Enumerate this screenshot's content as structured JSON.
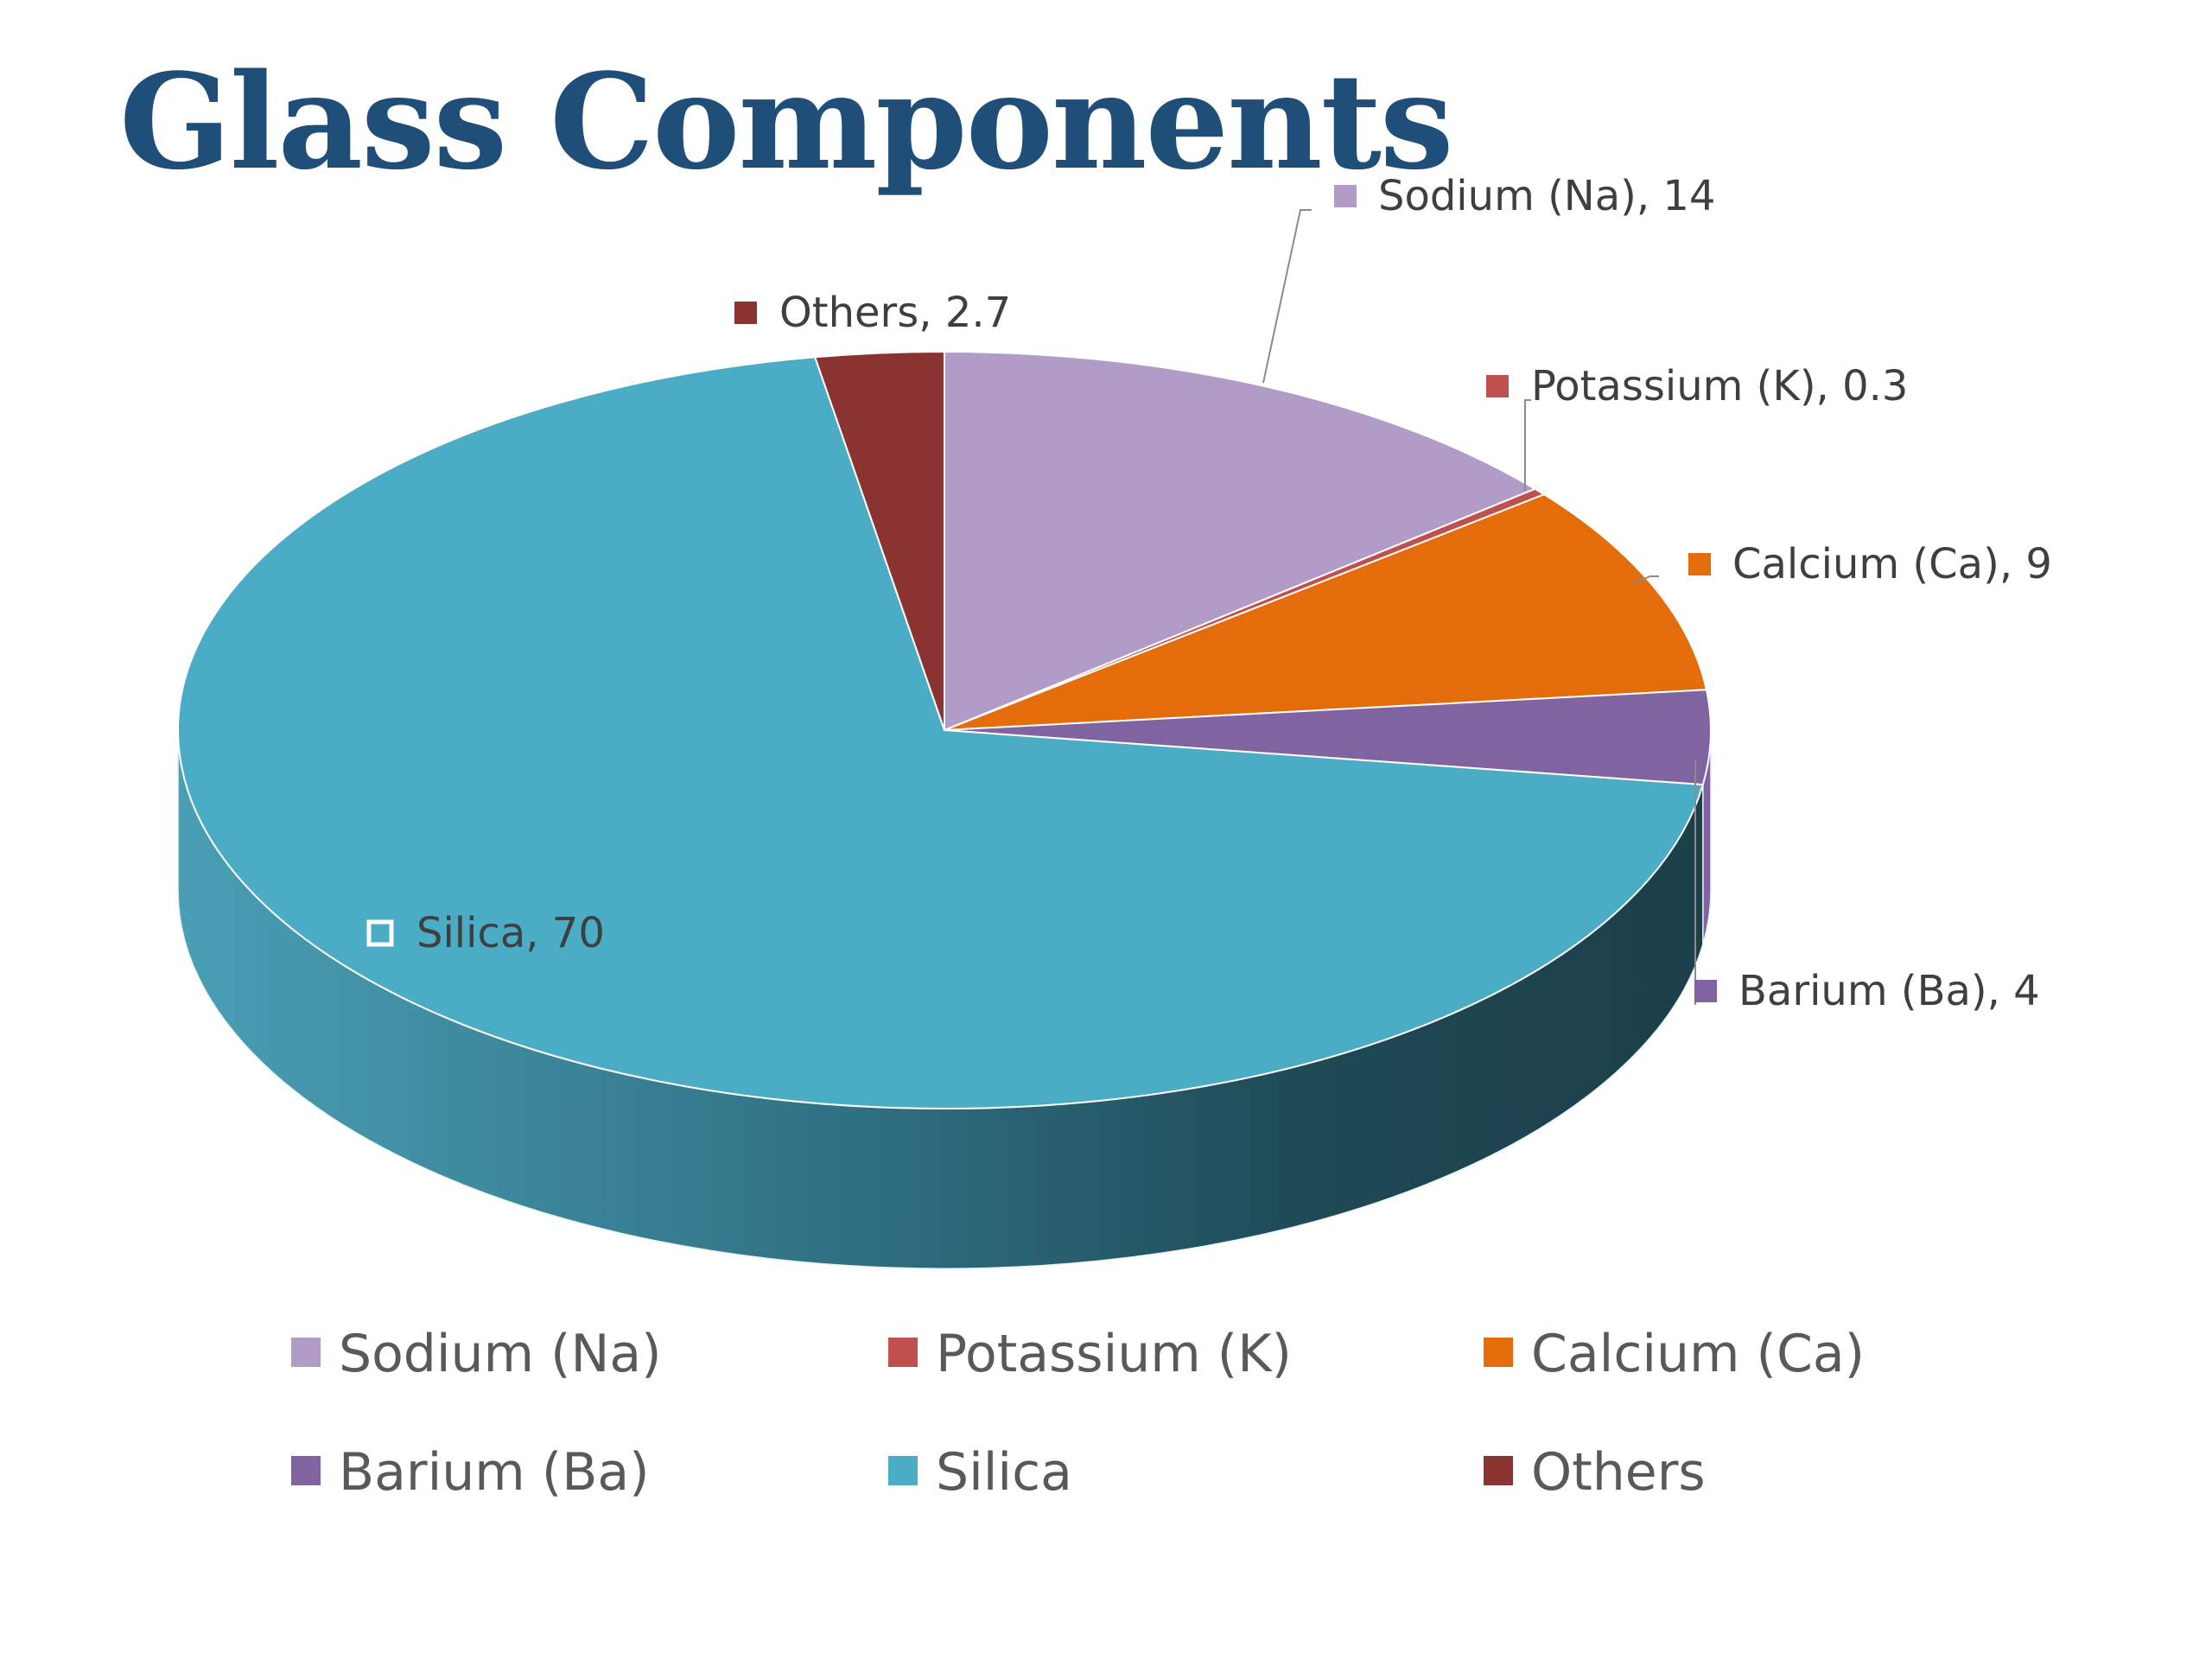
{
  "title": "Glass Components",
  "chart_data": {
    "type": "pie",
    "style": "3d",
    "title": "Glass Components",
    "categories": [
      "Sodium  (Na)",
      "Potassium (K)",
      "Calcium (Ca)",
      "Barium (Ba)",
      "Silica",
      "Others"
    ],
    "values": [
      14,
      0.3,
      9,
      4,
      70,
      2.7
    ],
    "data_labels": [
      "Sodium  (Na), 14",
      "Potassium (K), 0.3",
      "Calcium (Ca), 9",
      "Barium (Ba), 4",
      "Silica, 70",
      "Others, 2.7"
    ],
    "colors": [
      "#b09cc6",
      "#c0504d",
      "#e46c0a",
      "#8064a2",
      "#4bacc6",
      "#8b3331"
    ],
    "legend": {
      "position": "bottom",
      "items": [
        {
          "label": "Sodium  (Na)",
          "color": "#b09cc6"
        },
        {
          "label": "Potassium (K)",
          "color": "#c0504d"
        },
        {
          "label": "Calcium (Ca)",
          "color": "#e46c0a"
        },
        {
          "label": "Barium (Ba)",
          "color": "#8064a2"
        },
        {
          "label": "Silica",
          "color": "#4bacc6"
        },
        {
          "label": "Others",
          "color": "#8b3331"
        }
      ]
    }
  }
}
